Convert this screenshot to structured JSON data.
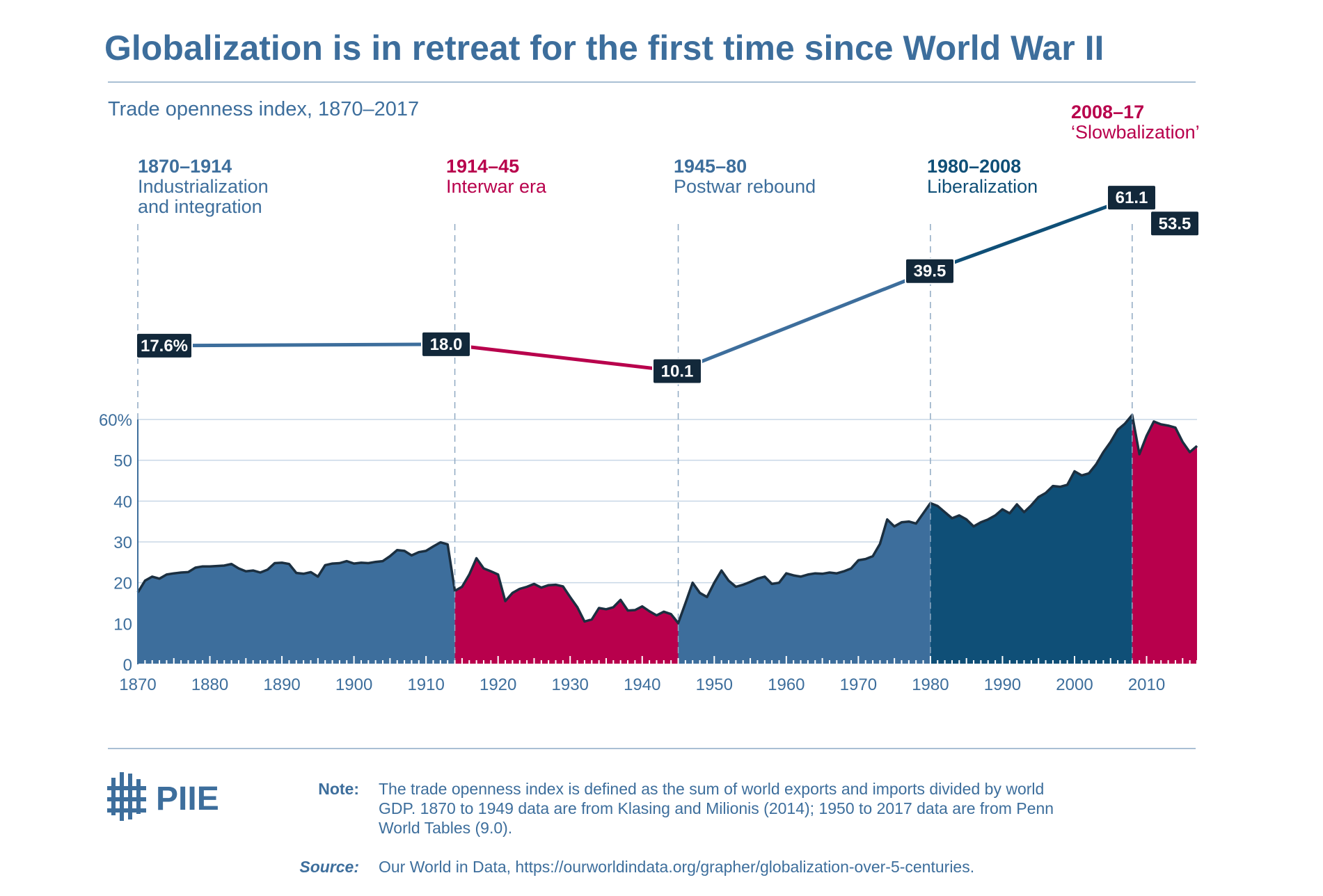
{
  "chart_data": {
    "type": "area",
    "title": "Globalization is in retreat for the first time since World War II",
    "subtitle": "Trade openness index, 1870–2017",
    "ylim": [
      0,
      60
    ],
    "yticks": [
      0,
      10,
      20,
      30,
      40,
      50,
      60
    ],
    "ytick_labels": [
      "0",
      "10",
      "20",
      "30",
      "40",
      "50",
      "60%"
    ],
    "xlim": [
      1870,
      2017
    ],
    "xticks": [
      1870,
      1880,
      1890,
      1900,
      1910,
      1920,
      1930,
      1940,
      1950,
      1960,
      1970,
      1980,
      1990,
      2000,
      2010
    ],
    "grid": true,
    "series": [
      {
        "x": [
          1870,
          1871,
          1872,
          1873,
          1874,
          1875,
          1876,
          1877,
          1878,
          1879,
          1880,
          1881,
          1882,
          1883,
          1884,
          1885,
          1886,
          1887,
          1888,
          1889,
          1890,
          1891,
          1892,
          1893,
          1894,
          1895,
          1896,
          1897,
          1898,
          1899,
          1900,
          1901,
          1902,
          1903,
          1904,
          1905,
          1906,
          1907,
          1908,
          1909,
          1910,
          1911,
          1912,
          1913,
          1914,
          1915,
          1916,
          1917,
          1918,
          1919,
          1920,
          1921,
          1922,
          1923,
          1924,
          1925,
          1926,
          1927,
          1928,
          1929,
          1930,
          1931,
          1932,
          1933,
          1934,
          1935,
          1936,
          1937,
          1938,
          1939,
          1940,
          1941,
          1942,
          1943,
          1944,
          1945,
          1946,
          1947,
          1948,
          1949,
          1950,
          1951,
          1952,
          1953,
          1954,
          1955,
          1956,
          1957,
          1958,
          1959,
          1960,
          1961,
          1962,
          1963,
          1964,
          1965,
          1966,
          1967,
          1968,
          1969,
          1970,
          1971,
          1972,
          1973,
          1974,
          1975,
          1976,
          1977,
          1978,
          1979,
          1980,
          1981,
          1982,
          1983,
          1984,
          1985,
          1986,
          1987,
          1988,
          1989,
          1990,
          1991,
          1992,
          1993,
          1994,
          1995,
          1996,
          1997,
          1998,
          1999,
          2000,
          2001,
          2002,
          2003,
          2004,
          2005,
          2006,
          2007,
          2008,
          2009,
          2010,
          2011,
          2012,
          2013,
          2014,
          2015,
          2016,
          2017
        ],
        "values": [
          17.6,
          20.5,
          21.5,
          21,
          22,
          22.3,
          22.5,
          22.6,
          23.7,
          24,
          24,
          24.1,
          24.2,
          24.6,
          23.5,
          22.8,
          23,
          22.5,
          23.2,
          24.8,
          24.9,
          24.6,
          22.4,
          22.2,
          22.6,
          21.5,
          24.3,
          24.7,
          24.8,
          25.3,
          24.7,
          24.9,
          24.8,
          25.1,
          25.3,
          26.5,
          28,
          27.8,
          26.7,
          27.5,
          27.8,
          28.9,
          29.9,
          29.4,
          18,
          19,
          22,
          26,
          23.5,
          22.8,
          22,
          15.5,
          17.5,
          18.5,
          19,
          19.7,
          18.8,
          19.4,
          19.5,
          19.1,
          16.5,
          14,
          10.5,
          11,
          13.8,
          13.5,
          14,
          15.8,
          13.2,
          13.3,
          14.2,
          13,
          12,
          12.9,
          12.3,
          10.1,
          15,
          20,
          17.5,
          16.5,
          20,
          23,
          20.5,
          19,
          19.5,
          20.2,
          21,
          21.5,
          19.7,
          20,
          22.3,
          21.8,
          21.5,
          22,
          22.3,
          22.2,
          22.5,
          22.3,
          22.8,
          23.5,
          25.5,
          25.8,
          26.5,
          29.5,
          35.5,
          33.8,
          34.8,
          35,
          34.5,
          37,
          39.5,
          38.8,
          37.3,
          35.8,
          36.5,
          35.5,
          33.8,
          34.8,
          35.5,
          36.5,
          38,
          37,
          39.2,
          37.3,
          39,
          41,
          42,
          43.7,
          43.5,
          44,
          47.3,
          46.3,
          46.8,
          49,
          52,
          54.5,
          57.5,
          59,
          61.1,
          51.5,
          56,
          59.5,
          58.8,
          58.5,
          58,
          54.5,
          52,
          53.5
        ]
      }
    ],
    "eras": [
      {
        "start": 1870,
        "end": 1914,
        "date_label": "1870–1914",
        "name_lines": [
          "Industrialization",
          "and integration"
        ],
        "color": "#3d6e9c"
      },
      {
        "start": 1914,
        "end": 1945,
        "date_label": "1914–45",
        "name_lines": [
          "Interwar era"
        ],
        "color": "#b8004c"
      },
      {
        "start": 1945,
        "end": 1980,
        "date_label": "1945–80",
        "name_lines": [
          "Postwar rebound"
        ],
        "color": "#3d6e9c"
      },
      {
        "start": 1980,
        "end": 2008,
        "date_label": "1980–2008",
        "name_lines": [
          "Liberalization"
        ],
        "color": "#0f4f77"
      },
      {
        "start": 2008,
        "end": 2017,
        "date_label": "2008–17",
        "name_lines": [
          "‘Slowbalization’"
        ],
        "color": "#b8004c"
      }
    ],
    "summary_line": [
      {
        "year": 1870,
        "value": 17.6,
        "label": "17.6%"
      },
      {
        "year": 1914,
        "value": 18.0,
        "label": "18.0"
      },
      {
        "year": 1945,
        "value": 10.1,
        "label": "10.1"
      },
      {
        "year": 1980,
        "value": 39.5,
        "label": "39.5"
      },
      {
        "year": 2008,
        "value": 61.1,
        "label": "61.1"
      },
      {
        "year": 2017,
        "value": 53.5,
        "label": "53.5"
      }
    ]
  },
  "colors": {
    "blue": "#3d6e9c",
    "dark_blue": "#0f4f77",
    "crimson": "#b8004c",
    "navy_label": "#12283a",
    "grid": "#c8d7e6"
  },
  "footer": {
    "logo_text": "PIIE",
    "note_label": "Note:",
    "note_lines": [
      "The trade openness index is defined as the sum of world exports and imports divided by world",
      "GDP. 1870 to 1949 data are from Klasing and Milionis (2014); 1950 to 2017 data are from Penn",
      "World Tables (9.0)."
    ],
    "source_label": "Source:",
    "source_text": "Our World in Data, https://ourworldindata.org/grapher/globalization-over-5-centuries."
  }
}
